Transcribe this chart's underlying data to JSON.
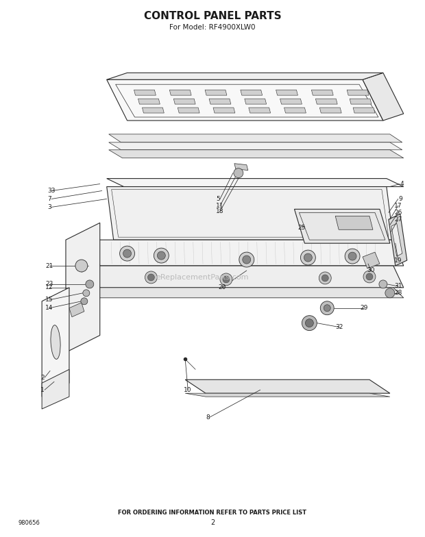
{
  "title": "CONTROL PANEL PARTS",
  "subtitle": "For Model: RF4900XLW0",
  "footer": "FOR ORDERING INFORMATION REFER TO PARTS PRICE LIST",
  "part_number": "980656",
  "page_number": "2",
  "watermark": "eReplacementParts.com",
  "bg_color": "#ffffff",
  "line_color": "#2a2a2a",
  "text_color": "#1a1a1a",
  "title_fontsize": 11,
  "subtitle_fontsize": 7.5,
  "footer_fontsize": 6.0,
  "label_fontsize": 6.5,
  "figsize": [
    6.2,
    7.84
  ],
  "dpi": 100
}
